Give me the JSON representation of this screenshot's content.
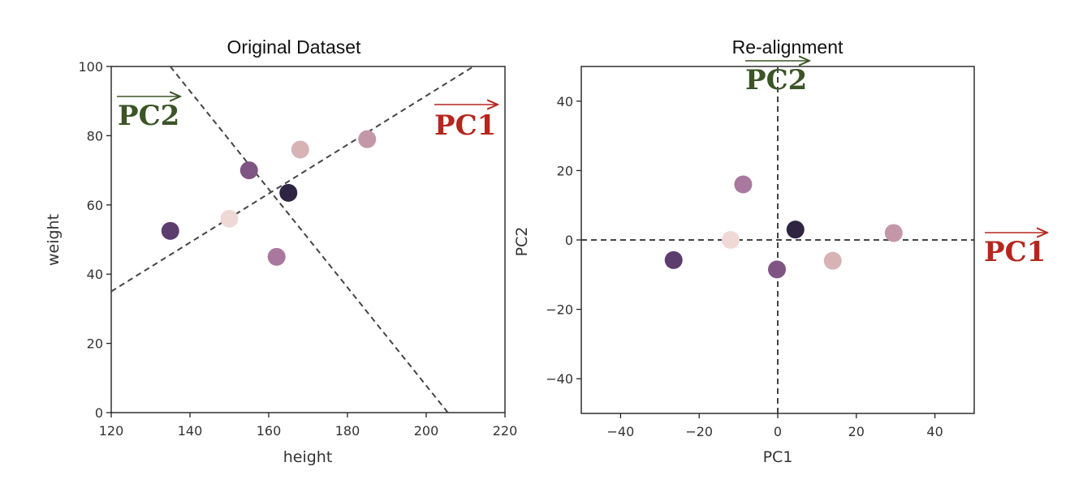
{
  "chart_data": [
    {
      "type": "scatter",
      "title": "Original Dataset",
      "xlabel": "height",
      "ylabel": "weight",
      "xlim": [
        120,
        220
      ],
      "ylim": [
        0,
        100
      ],
      "xticks": [
        120,
        140,
        160,
        180,
        200,
        220
      ],
      "yticks": [
        0,
        20,
        40,
        60,
        80,
        100
      ],
      "points": [
        {
          "x": 135,
          "y": 52.5,
          "color": "#5b3d6e"
        },
        {
          "x": 150,
          "y": 56,
          "color": "#eed9d6"
        },
        {
          "x": 155,
          "y": 70,
          "color": "#7f5583"
        },
        {
          "x": 165,
          "y": 63.5,
          "color": "#2f2542"
        },
        {
          "x": 162,
          "y": 45,
          "color": "#a9789e"
        },
        {
          "x": 168,
          "y": 76,
          "color": "#d7b3b6"
        },
        {
          "x": 185,
          "y": 79,
          "color": "#c397a8"
        }
      ],
      "lines": [
        {
          "from": [
            120,
            35
          ],
          "to": [
            212,
            100
          ],
          "style": "dashed",
          "color": "#444444"
        },
        {
          "from": [
            135,
            100
          ],
          "to": [
            205.5,
            0
          ],
          "style": "dashed",
          "color": "#444444"
        }
      ],
      "annotations": [
        {
          "text": "PC2",
          "vector": true,
          "color": "#3b5526",
          "position": "top-left"
        },
        {
          "text": "PC1",
          "vector": true,
          "color": "#b5271e",
          "position": "top-right"
        }
      ]
    },
    {
      "type": "scatter",
      "title": "Re-alignment",
      "xlabel": "PC1",
      "ylabel": "PC2",
      "xlim": [
        -50,
        50
      ],
      "ylim": [
        -50,
        50
      ],
      "xticks": [
        -40,
        -20,
        0,
        20,
        40
      ],
      "yticks": [
        -40,
        -20,
        0,
        20,
        40
      ],
      "xtick_labels": [
        "−40",
        "−20",
        "0",
        "20",
        "40"
      ],
      "ytick_labels": [
        "−40",
        "−20",
        "0",
        "20",
        "40"
      ],
      "points": [
        {
          "x": -26.5,
          "y": -5.8,
          "color": "#5b3d6e"
        },
        {
          "x": -12,
          "y": 0,
          "color": "#eed9d6"
        },
        {
          "x": -8.8,
          "y": 16,
          "color": "#a9789e"
        },
        {
          "x": 4.5,
          "y": 3,
          "color": "#2f2542"
        },
        {
          "x": -0.2,
          "y": -8.5,
          "color": "#7f5583"
        },
        {
          "x": 14,
          "y": -6,
          "color": "#d7b3b6"
        },
        {
          "x": 29.5,
          "y": 2,
          "color": "#c397a8"
        }
      ],
      "lines": [
        {
          "from": [
            -50,
            0
          ],
          "to": [
            50,
            0
          ],
          "style": "dashed",
          "color": "#444444"
        },
        {
          "from": [
            0,
            -50
          ],
          "to": [
            0,
            50
          ],
          "style": "dashed",
          "color": "#444444"
        }
      ],
      "annotations": [
        {
          "text": "PC2",
          "vector": true,
          "color": "#3b5526",
          "position": "top-center"
        },
        {
          "text": "PC1",
          "vector": true,
          "color": "#b5271e",
          "position": "right"
        }
      ]
    }
  ]
}
